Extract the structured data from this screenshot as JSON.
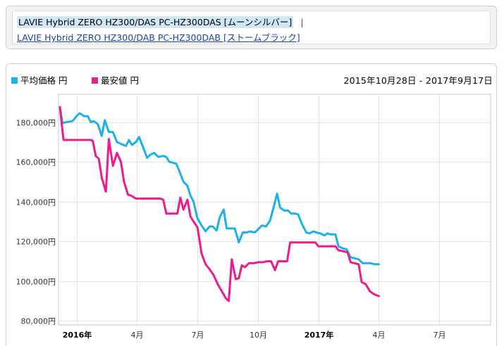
{
  "variants": {
    "current": "LAVIE Hybrid ZERO HZ300/DAS PC-HZ300DAS [ムーンシルバー]",
    "separator": "|",
    "other": "LAVIE Hybrid ZERO HZ300/DAB PC-HZ300DAB [ストームブラック]"
  },
  "legend": {
    "avg_label": "平均価格 円",
    "min_label": "最安値 円"
  },
  "date_range": "2015年10月28日 - 2017年9月17日",
  "colors": {
    "avg": "#1ab2ea",
    "min": "#ec1c8c",
    "grid": "#e3e3e3"
  },
  "chart_data": {
    "type": "line",
    "title": "",
    "xlabel": "",
    "ylabel": "",
    "x_unit": "months since Oct 2015",
    "xlim": [
      2.1,
      23.55
    ],
    "ylim": [
      78000,
      194000
    ],
    "y_ticks": [
      {
        "value": 80000,
        "label": "80,000円"
      },
      {
        "value": 100000,
        "label": "100,000円"
      },
      {
        "value": 120000,
        "label": "120,000円"
      },
      {
        "value": 140000,
        "label": "140,000円"
      },
      {
        "value": 160000,
        "label": "160,000円"
      },
      {
        "value": 180000,
        "label": "180,000円"
      }
    ],
    "x_ticks": [
      {
        "value": 3,
        "label": "2016年",
        "bold": true
      },
      {
        "value": 6,
        "label": "4月",
        "bold": false
      },
      {
        "value": 9,
        "label": "7月",
        "bold": false
      },
      {
        "value": 12,
        "label": "10月",
        "bold": false
      },
      {
        "value": 15,
        "label": "2017年",
        "bold": true
      },
      {
        "value": 18,
        "label": "4月",
        "bold": false
      },
      {
        "value": 21,
        "label": "7月",
        "bold": false
      }
    ],
    "grid": true,
    "legend_position": "top-left",
    "series": [
      {
        "name": "平均価格 円",
        "color": "#1ab2ea",
        "points": [
          [
            2.17,
            187500
          ],
          [
            2.3,
            179500
          ],
          [
            2.5,
            180000
          ],
          [
            2.8,
            180500
          ],
          [
            3.0,
            183000
          ],
          [
            3.15,
            184500
          ],
          [
            3.35,
            183000
          ],
          [
            3.55,
            183000
          ],
          [
            3.7,
            180000
          ],
          [
            3.85,
            180500
          ],
          [
            4.05,
            179000
          ],
          [
            4.25,
            173000
          ],
          [
            4.4,
            181000
          ],
          [
            4.6,
            175000
          ],
          [
            4.8,
            175000
          ],
          [
            5.0,
            170000
          ],
          [
            5.2,
            169000
          ],
          [
            5.45,
            168000
          ],
          [
            5.6,
            171000
          ],
          [
            5.75,
            168500
          ],
          [
            5.95,
            170000
          ],
          [
            6.1,
            172500
          ],
          [
            6.35,
            166000
          ],
          [
            6.5,
            162000
          ],
          [
            6.65,
            163500
          ],
          [
            6.85,
            164500
          ],
          [
            7.05,
            162500
          ],
          [
            7.3,
            163000
          ],
          [
            7.45,
            162500
          ],
          [
            7.6,
            160000
          ],
          [
            7.8,
            159500
          ],
          [
            7.95,
            159000
          ],
          [
            8.15,
            154000
          ],
          [
            8.3,
            150000
          ],
          [
            8.5,
            148000
          ],
          [
            8.65,
            143000
          ],
          [
            8.8,
            140000
          ],
          [
            9.0,
            131500
          ],
          [
            9.2,
            128000
          ],
          [
            9.4,
            125000
          ],
          [
            9.6,
            127500
          ],
          [
            9.75,
            127500
          ],
          [
            9.95,
            125500
          ],
          [
            10.1,
            132000
          ],
          [
            10.3,
            136000
          ],
          [
            10.45,
            126500
          ],
          [
            10.65,
            126500
          ],
          [
            10.85,
            126500
          ],
          [
            11.05,
            119500
          ],
          [
            11.25,
            124500
          ],
          [
            11.45,
            124500
          ],
          [
            11.6,
            125000
          ],
          [
            11.85,
            124500
          ],
          [
            12.0,
            126000
          ],
          [
            12.2,
            128000
          ],
          [
            12.4,
            127500
          ],
          [
            12.6,
            130500
          ],
          [
            12.8,
            138000
          ],
          [
            12.95,
            144000
          ],
          [
            13.1,
            137000
          ],
          [
            13.3,
            135500
          ],
          [
            13.5,
            135500
          ],
          [
            13.65,
            134000
          ],
          [
            13.85,
            134000
          ],
          [
            14.0,
            133500
          ],
          [
            14.15,
            129500
          ],
          [
            14.4,
            124500
          ],
          [
            14.55,
            124000
          ],
          [
            14.75,
            125000
          ],
          [
            14.9,
            124500
          ],
          [
            15.1,
            124000
          ],
          [
            15.3,
            123000
          ],
          [
            15.45,
            124000
          ],
          [
            15.6,
            123500
          ],
          [
            15.85,
            123500
          ],
          [
            16.0,
            117500
          ],
          [
            16.2,
            116500
          ],
          [
            16.4,
            116000
          ],
          [
            16.6,
            112000
          ],
          [
            16.8,
            111500
          ],
          [
            17.0,
            111000
          ],
          [
            17.2,
            109000
          ],
          [
            17.4,
            109000
          ],
          [
            17.6,
            109000
          ],
          [
            17.8,
            108500
          ],
          [
            18.0,
            108500
          ]
        ]
      },
      {
        "name": "最安値 円",
        "color": "#ec1c8c",
        "points": [
          [
            2.17,
            187500
          ],
          [
            2.35,
            171000
          ],
          [
            2.55,
            171000
          ],
          [
            2.8,
            171000
          ],
          [
            3.05,
            171000
          ],
          [
            3.3,
            171000
          ],
          [
            3.5,
            171000
          ],
          [
            3.7,
            171000
          ],
          [
            3.8,
            170500
          ],
          [
            3.95,
            163000
          ],
          [
            4.1,
            161500
          ],
          [
            4.25,
            152000
          ],
          [
            4.45,
            145000
          ],
          [
            4.6,
            171500
          ],
          [
            4.8,
            158000
          ],
          [
            5.0,
            164500
          ],
          [
            5.2,
            160000
          ],
          [
            5.35,
            150000
          ],
          [
            5.55,
            143500
          ],
          [
            5.7,
            143000
          ],
          [
            5.95,
            141500
          ],
          [
            6.15,
            141500
          ],
          [
            6.35,
            141500
          ],
          [
            6.55,
            141500
          ],
          [
            6.75,
            141500
          ],
          [
            6.95,
            141500
          ],
          [
            7.15,
            141500
          ],
          [
            7.3,
            141000
          ],
          [
            7.45,
            134000
          ],
          [
            7.65,
            134000
          ],
          [
            7.85,
            134000
          ],
          [
            8.0,
            134000
          ],
          [
            8.15,
            142000
          ],
          [
            8.3,
            136000
          ],
          [
            8.5,
            141000
          ],
          [
            8.65,
            132500
          ],
          [
            8.8,
            130000
          ],
          [
            9.0,
            127000
          ],
          [
            9.2,
            114000
          ],
          [
            9.4,
            108500
          ],
          [
            9.6,
            106000
          ],
          [
            9.8,
            103000
          ],
          [
            10.0,
            98500
          ],
          [
            10.2,
            95000
          ],
          [
            10.4,
            91500
          ],
          [
            10.55,
            90000
          ],
          [
            10.7,
            111000
          ],
          [
            10.9,
            101000
          ],
          [
            11.05,
            101500
          ],
          [
            11.2,
            108000
          ],
          [
            11.35,
            107000
          ],
          [
            11.55,
            109000
          ],
          [
            11.8,
            109000
          ],
          [
            12.0,
            109500
          ],
          [
            12.25,
            109500
          ],
          [
            12.45,
            110000
          ],
          [
            12.65,
            110000
          ],
          [
            12.85,
            105500
          ],
          [
            13.0,
            110000
          ],
          [
            13.2,
            110000
          ],
          [
            13.45,
            110000
          ],
          [
            13.6,
            119500
          ],
          [
            13.85,
            119500
          ],
          [
            14.05,
            119500
          ],
          [
            14.3,
            119500
          ],
          [
            14.5,
            119500
          ],
          [
            14.7,
            119500
          ],
          [
            14.85,
            119500
          ],
          [
            15.0,
            117500
          ],
          [
            15.25,
            117500
          ],
          [
            15.45,
            117500
          ],
          [
            15.6,
            117500
          ],
          [
            15.85,
            117500
          ],
          [
            16.0,
            115500
          ],
          [
            16.25,
            115000
          ],
          [
            16.45,
            114500
          ],
          [
            16.6,
            109500
          ],
          [
            16.8,
            109000
          ],
          [
            17.0,
            108500
          ],
          [
            17.15,
            99500
          ],
          [
            17.35,
            98500
          ],
          [
            17.55,
            95000
          ],
          [
            17.75,
            93500
          ],
          [
            18.0,
            92500
          ]
        ]
      }
    ]
  }
}
